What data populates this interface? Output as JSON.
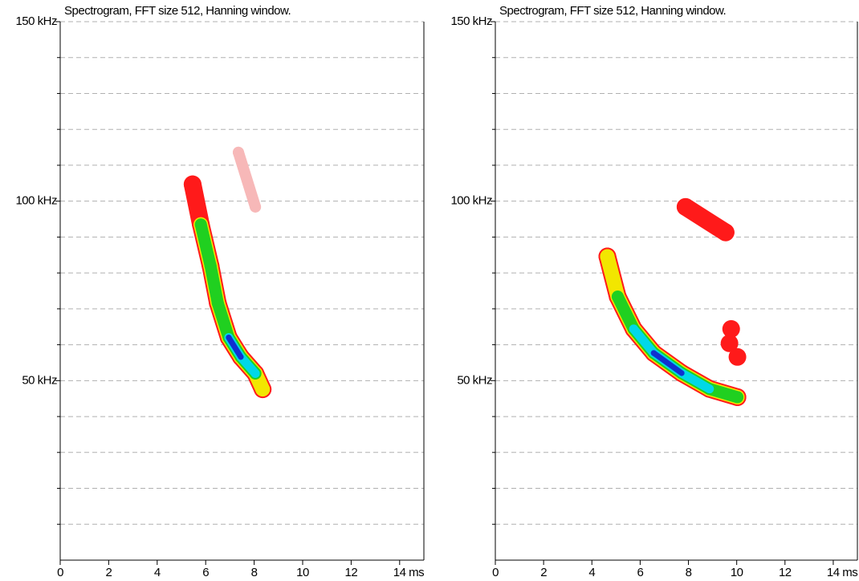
{
  "chart_data": [
    {
      "type": "spectrogram",
      "title": "Spectrogram, FFT size 512, Hanning window.",
      "xlim": [
        0,
        15
      ],
      "ylim": [
        0,
        150
      ],
      "xticks": [
        0,
        2,
        4,
        6,
        8,
        10,
        12,
        {
          "value": 14,
          "label": "14 ms"
        }
      ],
      "yticks": [
        {
          "value": 50,
          "label": "50 kHz"
        },
        {
          "value": 100,
          "label": "100 kHz"
        },
        {
          "value": 150,
          "label": "150 kHz"
        }
      ],
      "minor_yticks": [
        10,
        20,
        30,
        40,
        60,
        70,
        80,
        90,
        110,
        120,
        130,
        140
      ],
      "grid": true,
      "tracks": [
        {
          "x": [
            5.46,
            5.8,
            6.2,
            6.5,
            6.95,
            7.45,
            8.05,
            8.35
          ],
          "y": [
            104.7,
            93.5,
            82,
            71.6,
            62,
            56.6,
            52,
            47.6
          ],
          "levels": [
            1,
            3,
            3,
            3,
            5,
            5,
            4,
            2
          ]
        },
        {
          "x": [
            7.35,
            8.05
          ],
          "y": [
            113.6,
            98.4
          ],
          "levels": [
            0,
            0
          ]
        }
      ]
    },
    {
      "type": "spectrogram",
      "title": "Spectrogram, FFT size 512, Hanning window.",
      "xlim": [
        0,
        15
      ],
      "ylim": [
        0,
        150
      ],
      "xticks": [
        0,
        2,
        4,
        6,
        8,
        10,
        12,
        {
          "value": 14,
          "label": "14 ms"
        }
      ],
      "yticks": [
        {
          "value": 50,
          "label": "50 kHz"
        },
        {
          "value": 100,
          "label": "100 kHz"
        },
        {
          "value": 150,
          "label": "150 kHz"
        }
      ],
      "minor_yticks": [
        10,
        20,
        30,
        40,
        60,
        70,
        80,
        90,
        110,
        120,
        130,
        140
      ],
      "grid": true,
      "tracks": [
        {
          "x": [
            4.64,
            5.07,
            5.73,
            6.56,
            7.72,
            8.87,
            10.03
          ],
          "y": [
            84.6,
            73.4,
            64.4,
            57.7,
            52.1,
            47.7,
            45.4
          ],
          "levels": [
            2,
            3,
            4,
            5,
            5,
            4,
            3
          ]
        },
        {
          "x": [
            7.88,
            9.54
          ],
          "y": [
            98.4,
            91.3
          ],
          "levels": [
            1,
            1
          ]
        },
        {
          "x": [
            9.77
          ],
          "y": [
            64.4
          ],
          "levels": [
            1
          ]
        },
        {
          "x": [
            9.7
          ],
          "y": [
            60.4
          ],
          "levels": [
            1
          ]
        },
        {
          "x": [
            10.03
          ],
          "y": [
            56.6
          ],
          "levels": [
            1
          ]
        }
      ]
    }
  ]
}
